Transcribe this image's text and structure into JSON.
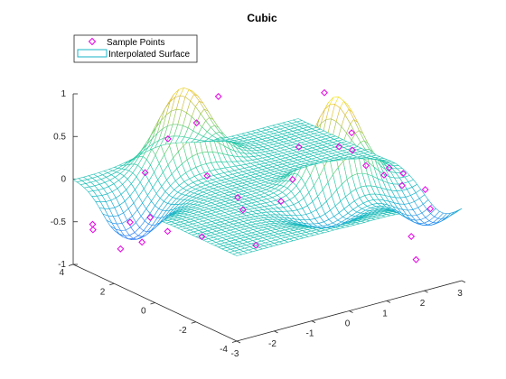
{
  "chart_data": {
    "type": "surface-mesh",
    "title": "Cubic",
    "xlabel": "",
    "ylabel": "",
    "zlabel": "",
    "xlim": [
      -3,
      3
    ],
    "ylim": [
      -4,
      4
    ],
    "zlim": [
      -1,
      1
    ],
    "x_ticks": [
      "-3",
      "-2",
      "-1",
      "0",
      "1",
      "2",
      "3"
    ],
    "y_ticks": [
      "-4",
      "-2",
      "0",
      "2",
      "4"
    ],
    "z_ticks": [
      "-1",
      "-0.5",
      "0",
      "0.5",
      "1"
    ],
    "legend": [
      {
        "label": "Sample Points",
        "marker": "diamond",
        "color": "#e600e6"
      },
      {
        "label": "Interpolated Surface",
        "marker": "patch",
        "color": "#17b5c7"
      }
    ],
    "legend_position": "top-left",
    "colormap": [
      "#3e26a8",
      "#4350e6",
      "#2e87f7",
      "#17b5c7",
      "#33cea0",
      "#8fcb5a",
      "#e0b93b",
      "#f9f924"
    ],
    "surface_model": [
      {
        "amp": 0.9,
        "x": -0.6,
        "y": 3.0,
        "sx": 0.9,
        "sy": 0.7
      },
      {
        "amp": 1.0,
        "x": 1.4,
        "y": -0.8,
        "sx": 0.8,
        "sy": 0.7
      },
      {
        "amp": -0.5,
        "x": -2.6,
        "y": 1.8,
        "sx": 0.8,
        "sy": 1.1
      },
      {
        "amp": -0.4,
        "x": 2.6,
        "y": -3.0,
        "sx": 0.8,
        "sy": 1.2
      },
      {
        "amp": -0.25,
        "x": 0.4,
        "y": -2.2,
        "sx": 1.0,
        "sy": 1.0
      }
    ],
    "sample_points": [
      [
        -2.7,
        3.6,
        -0.52
      ],
      [
        -2.8,
        3.4,
        -0.55
      ],
      [
        -2.5,
        2.6,
        -0.72
      ],
      [
        -2.2,
        2.1,
        -0.62
      ],
      [
        -1.9,
        1.4,
        -0.45
      ],
      [
        -2.3,
        2.5,
        -0.42
      ],
      [
        -1.3,
        3.6,
        -0.08
      ],
      [
        -0.8,
        3.4,
        0.28
      ],
      [
        -0.2,
        3.1,
        0.43
      ],
      [
        -0.3,
        2.4,
        -0.1
      ],
      [
        -1.6,
        2.8,
        -0.48
      ],
      [
        -1.2,
        1.0,
        -0.55
      ],
      [
        0.6,
        3.5,
        0.6
      ],
      [
        0.3,
        2.0,
        -0.38
      ],
      [
        0.0,
        1.2,
        -0.4
      ],
      [
        -0.2,
        0.2,
        -0.68
      ],
      [
        0.8,
        0.8,
        -0.35
      ],
      [
        1.3,
        -0.4,
        1.0
      ],
      [
        1.7,
        -1.0,
        0.55
      ],
      [
        1.2,
        -1.3,
        0.48
      ],
      [
        1.0,
        0.3,
        0.32
      ],
      [
        2.3,
        -0.6,
        0.05
      ],
      [
        2.8,
        -1.5,
        0.0
      ],
      [
        2.5,
        -2.0,
        -0.05
      ],
      [
        2.9,
        -2.4,
        -0.1
      ],
      [
        2.2,
        -3.0,
        -0.5
      ],
      [
        2.0,
        -3.6,
        -0.68
      ],
      [
        2.6,
        -3.2,
        -0.2
      ],
      [
        2.7,
        -1.0,
        0.02
      ],
      [
        0.4,
        -0.5,
        0.1
      ],
      [
        1.8,
        -2.4,
        0.2
      ],
      [
        2.1,
        -0.3,
        0.22
      ]
    ]
  }
}
